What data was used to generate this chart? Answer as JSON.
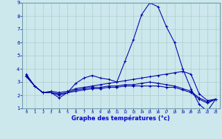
{
  "xlabel": "Graphe des températures (°c)",
  "bg_color": "#cce8ec",
  "line_color": "#0000aa",
  "border_color": "#6699aa",
  "xlim": [
    -0.5,
    23.5
  ],
  "ylim": [
    1,
    9
  ],
  "yticks": [
    1,
    2,
    3,
    4,
    5,
    6,
    7,
    8,
    9
  ],
  "xticks": [
    0,
    1,
    2,
    3,
    4,
    5,
    6,
    7,
    8,
    9,
    10,
    11,
    12,
    13,
    14,
    15,
    16,
    17,
    18,
    19,
    20,
    21,
    22,
    23
  ],
  "line1_y": [
    3.6,
    2.7,
    2.2,
    2.2,
    1.8,
    2.2,
    2.9,
    3.3,
    3.5,
    3.3,
    3.2,
    3.0,
    4.6,
    6.2,
    8.1,
    9.0,
    8.7,
    7.2,
    6.0,
    4.0,
    2.5,
    1.3,
    0.8,
    1.7
  ],
  "line2_y": [
    3.4,
    2.7,
    2.2,
    2.3,
    2.2,
    2.3,
    2.5,
    2.6,
    2.7,
    2.8,
    2.9,
    3.0,
    3.1,
    3.2,
    3.3,
    3.4,
    3.5,
    3.6,
    3.7,
    3.8,
    3.6,
    2.1,
    1.6,
    1.7
  ],
  "line3_y": [
    3.5,
    2.7,
    2.2,
    2.2,
    2.1,
    2.2,
    2.4,
    2.5,
    2.6,
    2.6,
    2.7,
    2.7,
    2.8,
    2.8,
    2.9,
    3.0,
    2.9,
    2.8,
    2.7,
    2.5,
    2.3,
    1.8,
    1.5,
    1.7
  ],
  "line4_y": [
    3.5,
    2.7,
    2.2,
    2.2,
    2.0,
    2.2,
    2.3,
    2.4,
    2.5,
    2.5,
    2.6,
    2.6,
    2.7,
    2.7,
    2.7,
    2.7,
    2.7,
    2.6,
    2.6,
    2.4,
    2.2,
    1.7,
    1.4,
    1.7
  ],
  "grid_color": "#aacccc",
  "xlabel_color": "#0000cc",
  "tick_label_color": "#0000aa",
  "bottom_bar_color": "#3355aa"
}
